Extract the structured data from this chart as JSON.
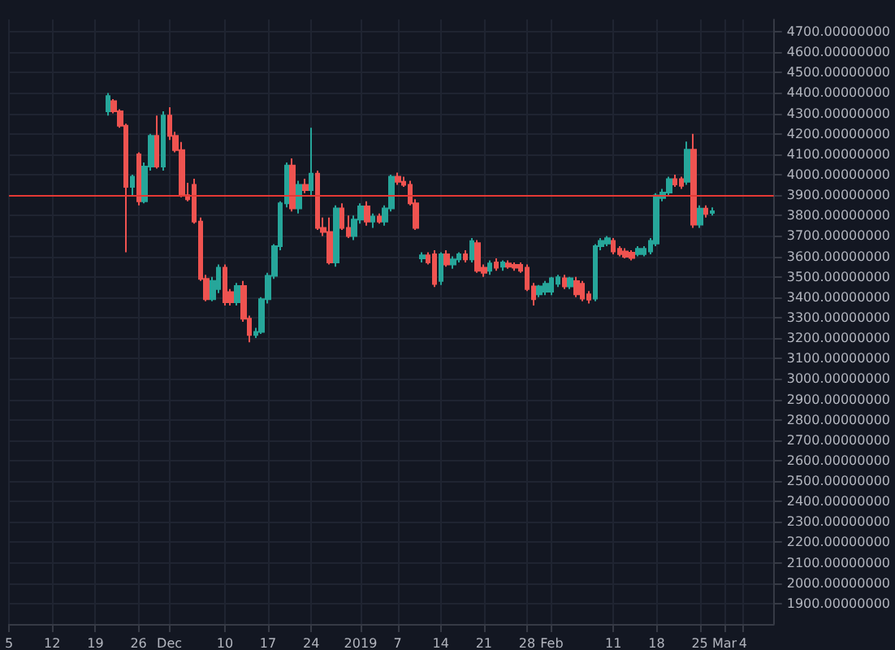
{
  "chart_data": {
    "type": "candlestick",
    "colors": [
      "#26a69a",
      "#ef5350",
      "#ef5350",
      "#ef5350",
      "#26a69a",
      "#ef5350",
      "#26a69a",
      "#26a69a",
      "#ef5350",
      "#26a69a",
      "#ef5350",
      "#ef5350",
      "#ef5350",
      "#ef5350",
      "#ef5350",
      "#ef5350",
      "#ef5350",
      "#26a69a",
      "#26a69a",
      "#ef5350",
      "#ef5350",
      "#26a69a",
      "#ef5350",
      "#ef5350",
      "#26a69a",
      "#26a69a",
      "#26a69a",
      "#26a69a",
      "#26a69a",
      "#26a69a",
      "#ef5350",
      "#26a69a",
      "#ef5350",
      "#26a69a",
      "#ef5350",
      "#ef5350",
      "#ef5350",
      "#26a69a",
      "#ef5350",
      "#ef5350",
      "#26a69a",
      "#26a69a",
      "#ef5350",
      "#26a69a",
      "#ef5350",
      "#26a69a",
      "#26a69a",
      "#ef5350",
      "#ef5350",
      "#ef5350",
      "#ef5350",
      "#26a69a",
      "#ef5350",
      "#ef5350",
      "#26a69a",
      "#ef5350",
      "#26a69a",
      "#26a69a",
      "#ef5350",
      "#26a69a",
      "#ef5350",
      "#ef5350",
      "#26a69a",
      "#ef5350",
      "#26a69a",
      "#ef5350",
      "#ef5350",
      "#ef5350",
      "#ef5350",
      "#ef5350",
      "#26a69a",
      "#26a69a",
      "#26a69a",
      "#26a69a",
      "#ef5350",
      "#26a69a",
      "#ef5350",
      "#ef5350",
      "#ef5350",
      "#26a69a",
      "#26a69a",
      "#26a69a",
      "#ef5350",
      "#ef5350",
      "#ef5350",
      "#ef5350",
      "#26a69a",
      "#26a69a",
      "#26a69a",
      "#26a69a",
      "#26a69a",
      "#26a69a",
      "#ef5350",
      "#ef5350",
      "#26a69a",
      "#ef5350",
      "#26a69a",
      "#ef5350",
      "#26a69a"
    ],
    "grid": true,
    "x": [
      "2018-11-21",
      "2018-11-22",
      "2018-11-23",
      "2018-11-24",
      "2018-11-25",
      "2018-11-26",
      "2018-11-27",
      "2018-11-28",
      "2018-11-29",
      "2018-11-30",
      "2018-12-01",
      "2018-12-02",
      "2018-12-03",
      "2018-12-04",
      "2018-12-05",
      "2018-12-06",
      "2018-12-07",
      "2018-12-08",
      "2018-12-09",
      "2018-12-10",
      "2018-12-11",
      "2018-12-12",
      "2018-12-13",
      "2018-12-14",
      "2018-12-15",
      "2018-12-16",
      "2018-12-17",
      "2018-12-18",
      "2018-12-19",
      "2018-12-20",
      "2018-12-21",
      "2018-12-22",
      "2018-12-23",
      "2018-12-24",
      "2018-12-25",
      "2018-12-26",
      "2018-12-27",
      "2018-12-28",
      "2018-12-29",
      "2018-12-30",
      "2018-12-31",
      "2019-01-01",
      "2019-01-02",
      "2019-01-03",
      "2019-01-04",
      "2019-01-05",
      "2019-01-06",
      "2019-01-07",
      "2019-01-08",
      "2019-01-09",
      "2019-01-10",
      "2019-01-11",
      "2019-01-12",
      "2019-01-13",
      "2019-01-14",
      "2019-01-15",
      "2019-01-16",
      "2019-01-17",
      "2019-01-18",
      "2019-01-19",
      "2019-01-20",
      "2019-01-21",
      "2019-01-22",
      "2019-01-23",
      "2019-01-24",
      "2019-01-25",
      "2019-01-26",
      "2019-01-27",
      "2019-01-28",
      "2019-01-29",
      "2019-01-30",
      "2019-01-31",
      "2019-02-01",
      "2019-02-02",
      "2019-02-03",
      "2019-02-04",
      "2019-02-05",
      "2019-02-06",
      "2019-02-07",
      "2019-02-08",
      "2019-02-09",
      "2019-02-10",
      "2019-02-11",
      "2019-02-12",
      "2019-02-13",
      "2019-02-14",
      "2019-02-15",
      "2019-02-16",
      "2019-02-17",
      "2019-02-18",
      "2019-02-19",
      "2019-02-20",
      "2019-02-21",
      "2019-02-22",
      "2019-02-23",
      "2019-02-24",
      "2019-02-25",
      "2019-02-26",
      "2019-02-27"
    ],
    "ohlc": [
      [
        4310,
        4400,
        4290,
        4385
      ],
      [
        4360,
        4370,
        4300,
        4310
      ],
      [
        4310,
        4320,
        4230,
        4240
      ],
      [
        4240,
        4250,
        3620,
        3940
      ],
      [
        3940,
        4000,
        3900,
        3990
      ],
      [
        4100,
        4110,
        3850,
        3870
      ],
      [
        3870,
        4060,
        3860,
        4040
      ],
      [
        4040,
        4200,
        4020,
        4190
      ],
      [
        4190,
        4290,
        4030,
        4040
      ],
      [
        4040,
        4310,
        4020,
        4290
      ],
      [
        4290,
        4330,
        4170,
        4190
      ],
      [
        4190,
        4210,
        4110,
        4120
      ],
      [
        4120,
        4160,
        3890,
        3900
      ],
      [
        3900,
        3960,
        3870,
        3880
      ],
      [
        3950,
        3980,
        3760,
        3770
      ],
      [
        3770,
        3790,
        3480,
        3490
      ],
      [
        3490,
        3510,
        3380,
        3390
      ],
      [
        3390,
        3500,
        3380,
        3480
      ],
      [
        3440,
        3560,
        3420,
        3545
      ],
      [
        3545,
        3560,
        3360,
        3375
      ],
      [
        3425,
        3440,
        3360,
        3375
      ],
      [
        3375,
        3470,
        3360,
        3455
      ],
      [
        3455,
        3480,
        3280,
        3295
      ],
      [
        3295,
        3310,
        3180,
        3215
      ],
      [
        3215,
        3250,
        3200,
        3230
      ],
      [
        3230,
        3400,
        3220,
        3390
      ],
      [
        3390,
        3520,
        3370,
        3505
      ],
      [
        3505,
        3660,
        3490,
        3650
      ],
      [
        3650,
        3870,
        3630,
        3860
      ],
      [
        3860,
        4060,
        3840,
        4045
      ],
      [
        4045,
        4080,
        3820,
        3835
      ],
      [
        3835,
        3970,
        3810,
        3950
      ],
      [
        3950,
        3980,
        3910,
        3925
      ],
      [
        3925,
        4230,
        3900,
        4005
      ],
      [
        4005,
        4020,
        3730,
        3740
      ],
      [
        3740,
        3790,
        3700,
        3720
      ],
      [
        3720,
        3790,
        3560,
        3570
      ],
      [
        3570,
        3850,
        3550,
        3835
      ],
      [
        3835,
        3860,
        3730,
        3740
      ],
      [
        3740,
        3800,
        3690,
        3700
      ],
      [
        3700,
        3800,
        3680,
        3780
      ],
      [
        3780,
        3860,
        3760,
        3845
      ],
      [
        3845,
        3870,
        3750,
        3770
      ],
      [
        3770,
        3810,
        3740,
        3795
      ],
      [
        3795,
        3810,
        3760,
        3770
      ],
      [
        3770,
        3850,
        3750,
        3835
      ],
      [
        3835,
        4000,
        3820,
        3990
      ],
      [
        3990,
        4010,
        3950,
        3965
      ],
      [
        3965,
        3990,
        3940,
        3950
      ],
      [
        3950,
        3970,
        3850,
        3860
      ],
      [
        3860,
        3880,
        3730,
        3740
      ],
      [
        3590,
        3620,
        3570,
        3605
      ],
      [
        3605,
        3620,
        3560,
        3570
      ],
      [
        3610,
        3630,
        3450,
        3465
      ],
      [
        3480,
        3620,
        3460,
        3610
      ],
      [
        3610,
        3630,
        3550,
        3560
      ],
      [
        3560,
        3600,
        3540,
        3585
      ],
      [
        3585,
        3620,
        3570,
        3610
      ],
      [
        3610,
        3630,
        3570,
        3585
      ],
      [
        3585,
        3690,
        3570,
        3675
      ],
      [
        3665,
        3680,
        3520,
        3530
      ],
      [
        3545,
        3560,
        3500,
        3520
      ],
      [
        3530,
        3580,
        3510,
        3565
      ],
      [
        3570,
        3590,
        3530,
        3545
      ],
      [
        3550,
        3580,
        3530,
        3570
      ],
      [
        3565,
        3580,
        3540,
        3550
      ],
      [
        3558,
        3570,
        3530,
        3545
      ],
      [
        3558,
        3570,
        3520,
        3530
      ],
      [
        3545,
        3560,
        3430,
        3440
      ],
      [
        3453,
        3470,
        3360,
        3390
      ],
      [
        3414,
        3460,
        3400,
        3453
      ],
      [
        3427,
        3480,
        3410,
        3466
      ],
      [
        3427,
        3500,
        3410,
        3493
      ],
      [
        3466,
        3510,
        3450,
        3498
      ],
      [
        3493,
        3510,
        3440,
        3453
      ],
      [
        3453,
        3500,
        3440,
        3493
      ],
      [
        3479,
        3500,
        3400,
        3414
      ],
      [
        3466,
        3480,
        3380,
        3393
      ],
      [
        3414,
        3430,
        3370,
        3388
      ],
      [
        3393,
        3660,
        3380,
        3650
      ],
      [
        3650,
        3690,
        3630,
        3676
      ],
      [
        3663,
        3700,
        3650,
        3689
      ],
      [
        3676,
        3690,
        3610,
        3624
      ],
      [
        3637,
        3650,
        3600,
        3611
      ],
      [
        3624,
        3640,
        3590,
        3598
      ],
      [
        3618,
        3630,
        3580,
        3592
      ],
      [
        3611,
        3650,
        3600,
        3637
      ],
      [
        3611,
        3650,
        3600,
        3637
      ],
      [
        3624,
        3690,
        3610,
        3676
      ],
      [
        3663,
        3910,
        3650,
        3899
      ],
      [
        3886,
        3930,
        3870,
        3913
      ],
      [
        3913,
        3990,
        3900,
        3978
      ],
      [
        3978,
        4000,
        3940,
        3952
      ],
      [
        3978,
        3990,
        3930,
        3945
      ],
      [
        3965,
        4162,
        3950,
        4122
      ],
      [
        4122,
        4200,
        3740,
        3755
      ],
      [
        3755,
        3850,
        3740,
        3834
      ],
      [
        3834,
        3850,
        3790,
        3808
      ],
      [
        3813,
        3840,
        3800,
        3821
      ]
    ],
    "xlim": [
      "2018-11-05",
      "2019-03-09"
    ],
    "xticks": [
      {
        "value": "2018-11-05",
        "label": "5"
      },
      {
        "value": "2018-11-12",
        "label": "12"
      },
      {
        "value": "2018-11-19",
        "label": "19"
      },
      {
        "value": "2018-11-26",
        "label": "26"
      },
      {
        "value": "2018-12-01",
        "label": "Dec"
      },
      {
        "value": "2018-12-10",
        "label": "10"
      },
      {
        "value": "2018-12-17",
        "label": "17"
      },
      {
        "value": "2018-12-24",
        "label": "24"
      },
      {
        "value": "2019-01-01",
        "label": "2019"
      },
      {
        "value": "2019-01-07",
        "label": "7"
      },
      {
        "value": "2019-01-14",
        "label": "14"
      },
      {
        "value": "2019-01-21",
        "label": "21"
      },
      {
        "value": "2019-01-28",
        "label": "28"
      },
      {
        "value": "2019-02-01",
        "label": "Feb"
      },
      {
        "value": "2019-02-11",
        "label": "11"
      },
      {
        "value": "2019-02-18",
        "label": "18"
      },
      {
        "value": "2019-02-25",
        "label": "25"
      },
      {
        "value": "2019-03-01",
        "label": "Mar"
      },
      {
        "value": "2019-03-04",
        "label": "4"
      }
    ],
    "ylim": [
      1800,
      4760
    ],
    "yticks": [
      {
        "value": 1900,
        "label": "1900.00000000"
      },
      {
        "value": 2000,
        "label": "2000.00000000"
      },
      {
        "value": 2100,
        "label": "2100.00000000"
      },
      {
        "value": 2200,
        "label": "2200.00000000"
      },
      {
        "value": 2300,
        "label": "2300.00000000"
      },
      {
        "value": 2400,
        "label": "2400.00000000"
      },
      {
        "value": 2500,
        "label": "2500.00000000"
      },
      {
        "value": 2600,
        "label": "2600.00000000"
      },
      {
        "value": 2700,
        "label": "2700.00000000"
      },
      {
        "value": 2800,
        "label": "2800.00000000"
      },
      {
        "value": 2900,
        "label": "2900.00000000"
      },
      {
        "value": 3000,
        "label": "3000.00000000"
      },
      {
        "value": 3100,
        "label": "3100.00000000"
      },
      {
        "value": 3200,
        "label": "3200.00000000"
      },
      {
        "value": 3300,
        "label": "3300.00000000"
      },
      {
        "value": 3400,
        "label": "3400.00000000"
      },
      {
        "value": 3500,
        "label": "3500.00000000"
      },
      {
        "value": 3600,
        "label": "3600.00000000"
      },
      {
        "value": 3700,
        "label": "3700.00000000"
      },
      {
        "value": 3800,
        "label": "3800.00000000"
      },
      {
        "value": 3900,
        "label": "3900.00000000"
      },
      {
        "value": 4000,
        "label": "4000.00000000"
      },
      {
        "value": 4100,
        "label": "4100.00000000"
      },
      {
        "value": 4200,
        "label": "4200.00000000"
      },
      {
        "value": 4300,
        "label": "4300.00000000"
      },
      {
        "value": 4400,
        "label": "4400.00000000"
      },
      {
        "value": 4500,
        "label": "4500.00000000"
      },
      {
        "value": 4600,
        "label": "4600.00000000"
      },
      {
        "value": 4700,
        "label": "4700.00000000"
      }
    ],
    "ref_lines": [
      {
        "axis": "y",
        "value": 3900,
        "label": null,
        "color": "#e53935"
      }
    ]
  }
}
